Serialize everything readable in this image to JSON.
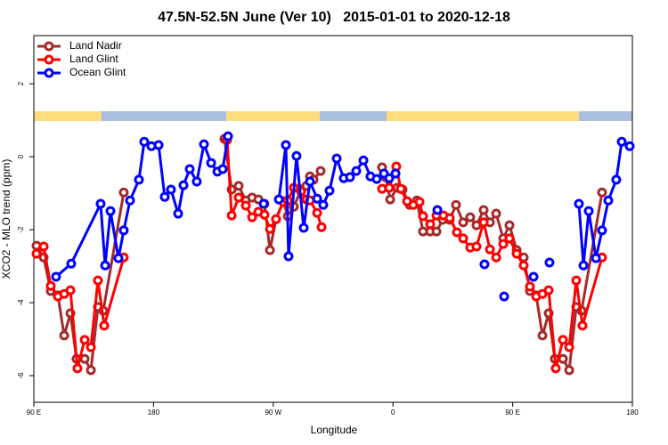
{
  "chart_data": {
    "type": "line",
    "title": "47.5N-52.5N June (Ver 10)   2015-01-01 to 2020-12-18",
    "x_label": "Longitude",
    "y_label": "XCO2 - MLO trend (ppm)",
    "xlim": [
      90,
      540
    ],
    "ylim": [
      -6.73,
      3.32
    ],
    "xticks": [
      {
        "value": 90,
        "label": "90 E"
      },
      180,
      {
        "value": 270,
        "label": "90 W"
      },
      {
        "value": 360,
        "label": "0"
      },
      {
        "value": 450,
        "label": "90 E"
      },
      {
        "value": 540,
        "label": "180"
      }
    ],
    "yticks": [
      2,
      0,
      -2,
      -4,
      -6
    ],
    "grid": false,
    "legend": "upper left",
    "series": [
      {
        "name": "Land Nadir",
        "color": "#a52a2a",
        "x": [
          92.0,
          97.4,
          102.7,
          108.1,
          112.8,
          117.5,
          122.1,
          128.2,
          132.9,
          138.2,
          142.2,
          157.6,
          195,
          233.3,
          238.7,
          244.0,
          249.4,
          254.1,
          258.8,
          263.4,
          267.5,
          272.1,
          277.5,
          280.9,
          285.5,
          290.9,
          294.9,
          297.6,
          300.3,
          305.6,
          330,
          351.8,
          354.5,
          357.9,
          363.2,
          367.2,
          372.6,
          378.0,
          382.6,
          388.0,
          392.7,
          397.4,
          402.7,
          407.4,
          412.8,
          418.1,
          422.8,
          428.2,
          432.9,
          437.6,
          442.9,
          447.6,
          453.0,
          458.3,
          463.0,
          467.7,
          472.4,
          477.1,
          481.7,
          487.8,
          492.5,
          497.8,
          501.8,
          517.2
        ],
        "values": [
          -2.44,
          -2.76,
          -3.68,
          -3.8,
          -4.9,
          -4.29,
          -5.54,
          -5.54,
          -5.85,
          -4.12,
          -4.22,
          -0.98,
          null,
          0.49,
          -0.9,
          -0.8,
          -1.2,
          -1.12,
          -1.17,
          -1.29,
          -2.56,
          -1.71,
          -1.22,
          -1.63,
          -1.37,
          -0.9,
          -0.8,
          -0.54,
          -0.63,
          -0.39,
          null,
          -0.29,
          -0.56,
          -1.17,
          -0.85,
          -0.9,
          -1.32,
          -1.2,
          -2.05,
          -2.05,
          -2.05,
          -1.73,
          -1.73,
          -1.32,
          -1.8,
          -1.66,
          -1.88,
          -1.46,
          -1.8,
          -1.56,
          -2.24,
          -1.88,
          -2.56,
          -2.76,
          -3.68,
          -3.8,
          -4.9,
          -4.29,
          -5.54,
          -5.54,
          -5.85,
          -4.12,
          -4.22,
          -0.98
        ]
      },
      {
        "name": "Land Glint",
        "color": "#ff0000",
        "x": [
          92.0,
          97.4,
          102.7,
          108.1,
          112.8,
          117.5,
          122.8,
          128.2,
          132.9,
          138.2,
          142.9,
          157.6,
          195,
          235.3,
          238.7,
          244.0,
          249.4,
          254.1,
          258.8,
          263.4,
          267.5,
          272.1,
          277.5,
          280.9,
          285.5,
          290.9,
          294.9,
          297.6,
          303.0,
          306.3,
          330,
          351.8,
          357.2,
          362.5,
          365.9,
          370.6,
          375.3,
          380.0,
          382.6,
          388.0,
          392.7,
          398.0,
          402.7,
          408.1,
          412.8,
          418.1,
          422.8,
          428.2,
          432.9,
          437.6,
          442.9,
          447.6,
          453.0,
          458.3,
          463.0,
          467.7,
          472.4,
          477.1,
          482.4,
          487.8,
          492.5,
          497.8,
          502.5,
          517.2
        ],
        "values": [
          -2.66,
          -2.46,
          -3.54,
          -3.83,
          -3.76,
          -3.66,
          -5.8,
          -5.02,
          -5.22,
          -3.39,
          -4.63,
          -2.76,
          null,
          0.46,
          -1.61,
          -1.12,
          -1.34,
          -1.66,
          -1.51,
          -1.59,
          -1.98,
          -1.71,
          -1.24,
          -1.2,
          -0.85,
          -0.95,
          -1.17,
          -1.2,
          -1.54,
          -1.93,
          null,
          -0.88,
          -0.85,
          -0.27,
          -0.88,
          -1.22,
          -1.32,
          -1.24,
          -1.63,
          -1.85,
          -1.61,
          -1.61,
          -1.68,
          -2.07,
          -2.24,
          -2.49,
          -2.46,
          -1.8,
          -2.54,
          -2.76,
          -2.39,
          -2.24,
          -2.66,
          -2.98,
          -3.56,
          -3.83,
          -3.76,
          -3.66,
          -5.8,
          -5.02,
          -5.22,
          -3.39,
          -4.63,
          -2.76
        ]
      },
      {
        "name": "Ocean Glint",
        "color": "#0000ff",
        "x": [
          106.7,
          118.1,
          140.2,
          143.6,
          147.6,
          153.6,
          157.6,
          162.3,
          169.0,
          173.0,
          178.4,
          183.8,
          188.4,
          193.1,
          198.5,
          202.5,
          207.2,
          212.5,
          217.9,
          223.3,
          228.0,
          232.0,
          236.0,
          250,
          262.8,
          268,
          274.2,
          279.5,
          281.5,
          287.5,
          292.9,
          297.6,
          303.0,
          307.6,
          312.3,
          317.7,
          323.0,
          327.7,
          332.4,
          337.8,
          343.1,
          347.8,
          353.2,
          357.2,
          361.9,
          375,
          393.4,
          410,
          428.8,
          436,
          443.6,
          455,
          465.7,
          472,
          477.7,
          490,
          499.8,
          503.2,
          507.2,
          512.6,
          517.2,
          521.9,
          527.9,
          532.0,
          538.0
        ],
        "values": [
          -3.29,
          -2.93,
          -1.29,
          -2.98,
          -1.49,
          -2.78,
          -2.02,
          -1.2,
          -0.63,
          0.41,
          0.29,
          0.32,
          -1.1,
          -0.9,
          -1.56,
          -0.78,
          -0.34,
          -0.68,
          0.34,
          -0.17,
          -0.41,
          -0.34,
          0.56,
          null,
          -1.29,
          null,
          -1.17,
          0.32,
          -2.73,
          0.02,
          -1.95,
          -0.68,
          -1.15,
          -1.32,
          -0.93,
          -0.05,
          -0.59,
          -0.56,
          -0.39,
          -0.1,
          -0.54,
          -0.61,
          -0.46,
          -0.59,
          -0.46,
          null,
          -1.46,
          null,
          -2.95,
          null,
          -3.83,
          null,
          -3.29,
          null,
          -2.9,
          null,
          -1.29,
          -2.98,
          -1.49,
          -2.78,
          -2.02,
          -1.2,
          -0.63,
          0.41,
          0.29
        ]
      }
    ]
  }
}
